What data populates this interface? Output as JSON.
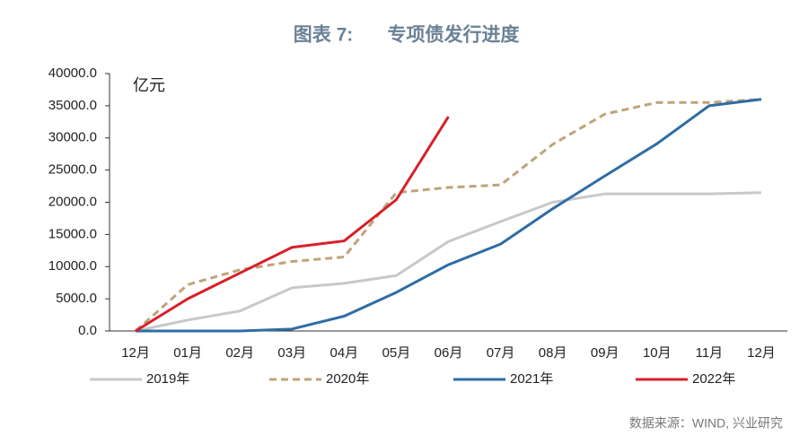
{
  "chart_data": {
    "type": "line",
    "title_label": "图表 7:",
    "title": "专项债发行进度",
    "y_label": "亿元",
    "source": "数据来源：WIND, 兴业研究",
    "categories": [
      "12月",
      "01月",
      "02月",
      "03月",
      "04月",
      "05月",
      "06月",
      "07月",
      "08月",
      "09月",
      "10月",
      "11月",
      "12月"
    ],
    "ylim": [
      0,
      40000
    ],
    "yticks": [
      {
        "value": 0,
        "label": "0.0"
      },
      {
        "value": 5000,
        "label": "5000.0"
      },
      {
        "value": 10000,
        "label": "10000.0"
      },
      {
        "value": 15000,
        "label": "15000.0"
      },
      {
        "value": 20000,
        "label": "20000.0"
      },
      {
        "value": 25000,
        "label": "25000.0"
      },
      {
        "value": 30000,
        "label": "30000.0"
      },
      {
        "value": 35000,
        "label": "35000.0"
      },
      {
        "value": 40000,
        "label": "40000.0"
      }
    ],
    "grid": false,
    "legend": "bottom",
    "series": [
      {
        "name": "2019年",
        "color": "#c8c8c8",
        "line_style": "solid",
        "values": [
          0,
          1700,
          3100,
          6700,
          7400,
          8600,
          13900,
          17000,
          20000,
          21300,
          21300,
          21300,
          21500
        ]
      },
      {
        "name": "2020年",
        "color": "#bfa37a",
        "line_style": "dashed",
        "values": [
          0,
          7200,
          9500,
          10800,
          11500,
          21500,
          22300,
          22700,
          29000,
          33700,
          35500,
          35500,
          36000
        ]
      },
      {
        "name": "2021年",
        "color": "#2e6da4",
        "line_style": "solid",
        "values": [
          0,
          0,
          0,
          300,
          2300,
          6000,
          10300,
          13500,
          19000,
          24100,
          29100,
          35000,
          36000
        ]
      },
      {
        "name": "2022年",
        "color": "#d7202a",
        "line_style": "solid",
        "values": [
          0,
          5000,
          9000,
          13000,
          14000,
          20400,
          33300,
          null,
          null,
          null,
          null,
          null,
          null
        ]
      }
    ]
  }
}
